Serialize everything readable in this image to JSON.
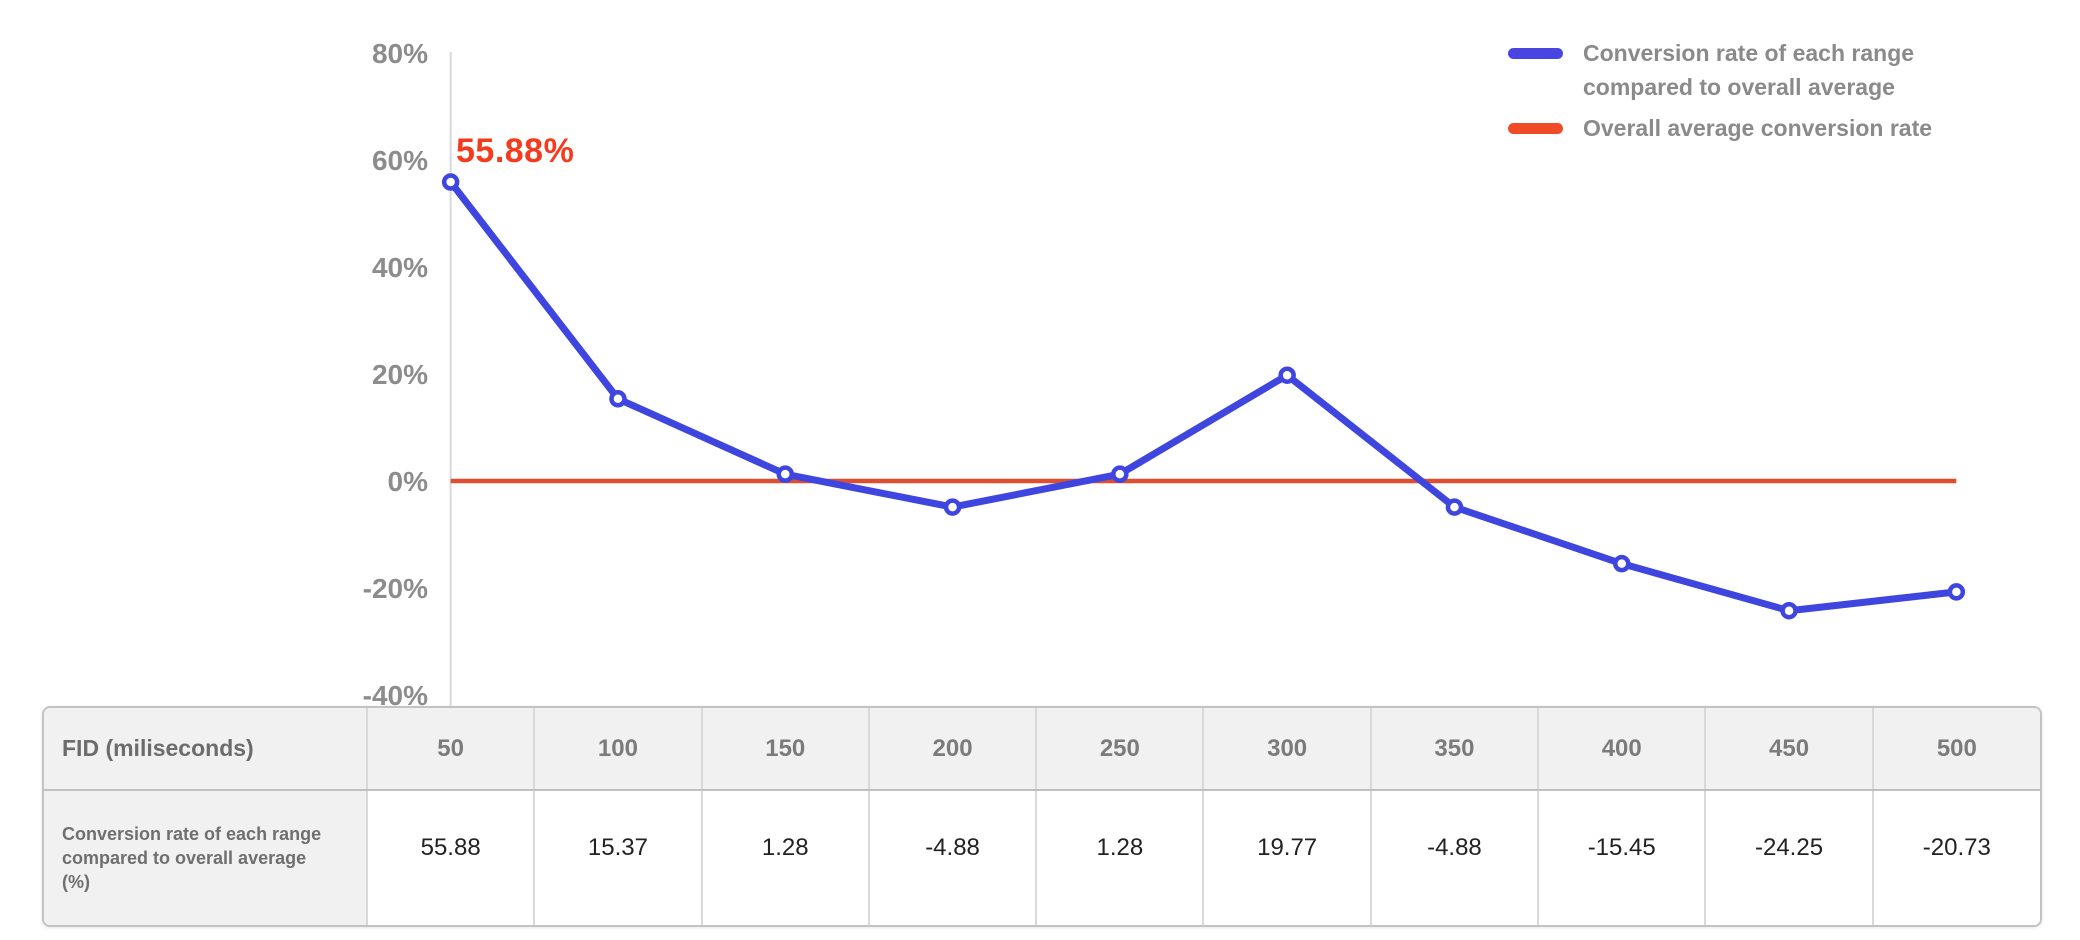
{
  "colors": {
    "series_blue": "#3f45df",
    "legend_blue": "#4a44e2",
    "average_red": "#dd4f30",
    "legend_red": "#f04a26",
    "annotation_red": "#f43b1d",
    "axis_text": "#8c8c8c",
    "legend_text": "#8a8a8a",
    "axis_line": "#d9d9d9"
  },
  "chart_data": {
    "type": "line",
    "title": "",
    "x": [
      50,
      100,
      150,
      200,
      250,
      300,
      350,
      400,
      450,
      500
    ],
    "xlabel": "FID (miliseconds)",
    "ylabel": "",
    "ylim": [
      -40,
      80
    ],
    "ytick_labels": [
      "80%",
      "60%",
      "40%",
      "20%",
      "0%",
      "-20%",
      "-40%"
    ],
    "grid": false,
    "legend_position": "top-right",
    "series": [
      {
        "name": "Conversion rate of each range compared to overall average",
        "type": "line",
        "color": "#3f45df",
        "legend_color": "#4a44e2",
        "values": [
          55.88,
          15.37,
          1.28,
          -4.88,
          1.28,
          19.77,
          -4.88,
          -15.45,
          -24.25,
          -20.73
        ]
      },
      {
        "name": "Overall average conversion rate",
        "type": "horizontal-reference-line",
        "color": "#dd4f30",
        "legend_color": "#f04a26",
        "value": 0
      }
    ],
    "annotation": {
      "text": "55.88%",
      "point_index": 0,
      "color": "#f43b1d"
    }
  },
  "table": {
    "header_label": "FID (miliseconds)",
    "columns": [
      "50",
      "100",
      "150",
      "200",
      "250",
      "300",
      "350",
      "400",
      "450",
      "500"
    ],
    "row_label": "Conversion rate of each range compared to overall average (%)",
    "values": [
      "55.88",
      "15.37",
      "1.28",
      "-4.88",
      "1.28",
      "19.77",
      "-4.88",
      "-15.45",
      "-24.25",
      "-20.73"
    ]
  }
}
